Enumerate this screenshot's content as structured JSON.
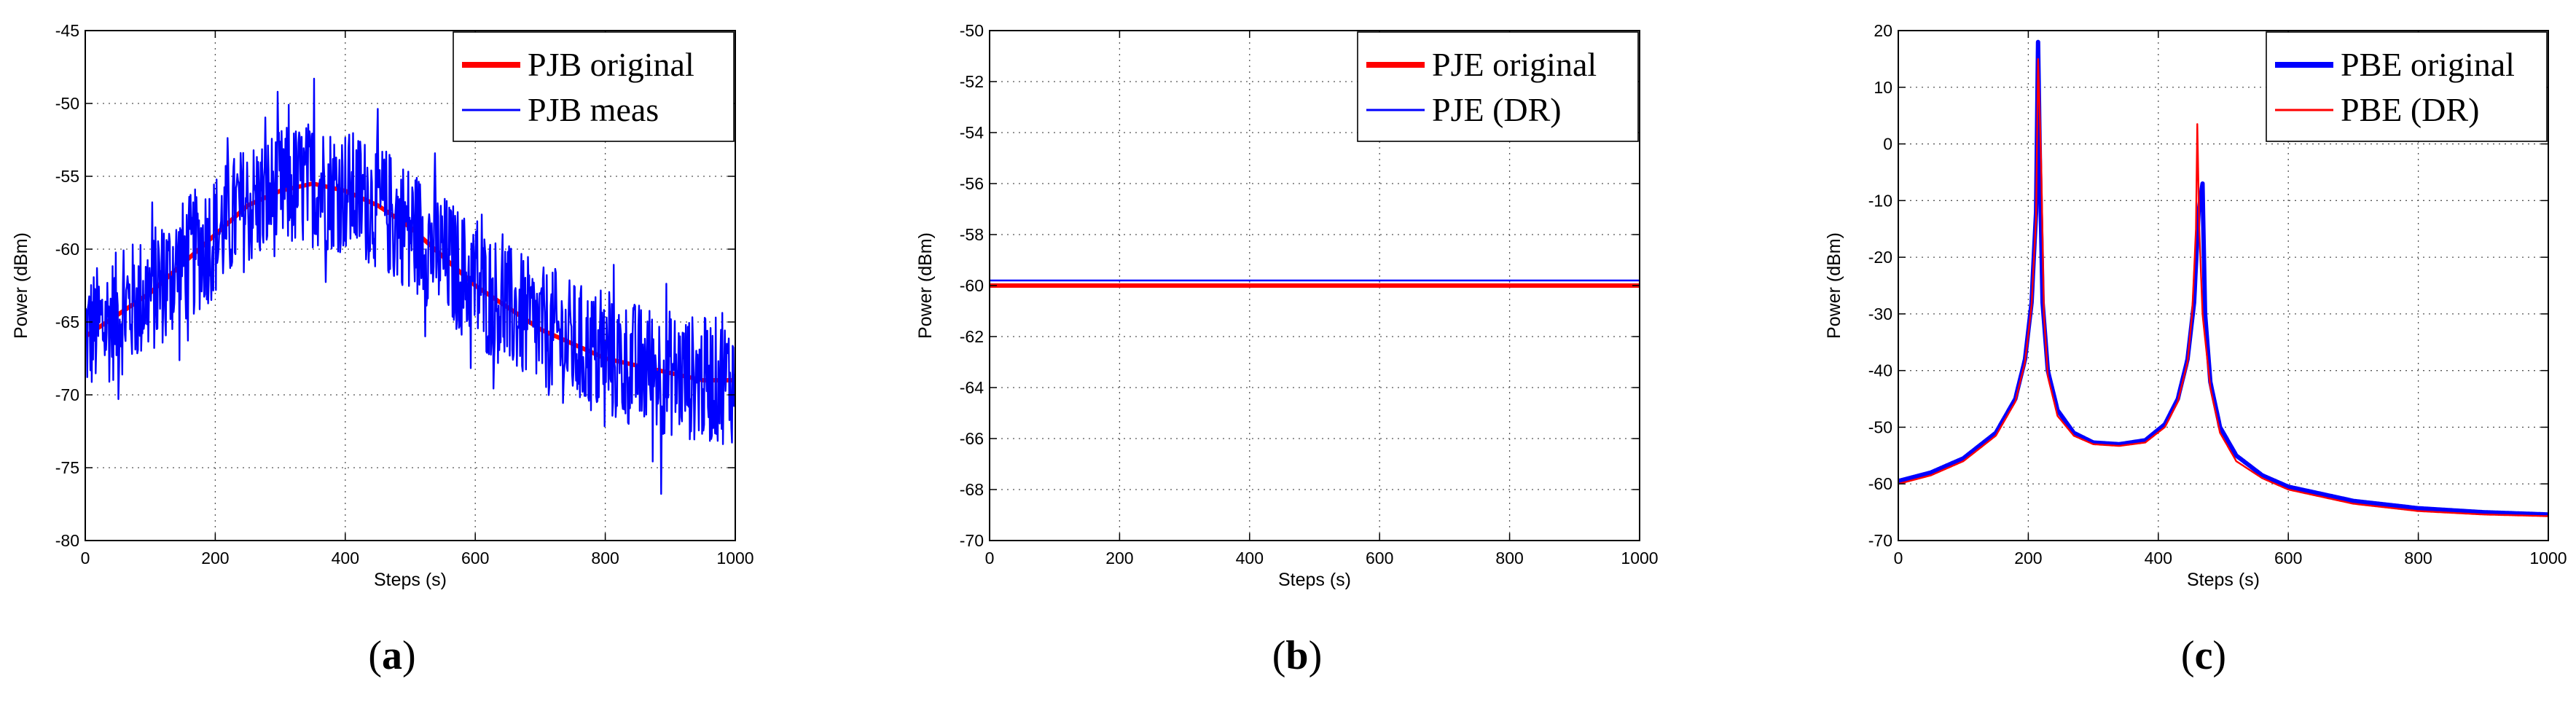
{
  "figure": {
    "subplots": [
      {
        "label_open": "(",
        "label_letter": "a",
        "label_close": ")"
      },
      {
        "label_open": "(",
        "label_letter": "b",
        "label_close": ")"
      },
      {
        "label_open": "(",
        "label_letter": "c",
        "label_close": ")"
      }
    ]
  },
  "chart_data": [
    {
      "type": "line",
      "title": "",
      "xlabel": "Steps (s)",
      "ylabel": "Power (dBm)",
      "xlim": [
        0,
        1000
      ],
      "ylim": [
        -80,
        -45
      ],
      "xticks": [
        0,
        200,
        400,
        600,
        800,
        1000
      ],
      "yticks": [
        -80,
        -75,
        -70,
        -65,
        -60,
        -55,
        -50,
        -45
      ],
      "grid": true,
      "legend_position": "top-right",
      "series": [
        {
          "name": "PJB original",
          "color": "#ff0000",
          "style": "thick",
          "note": "smooth trend hidden beneath noisy measurement",
          "x": [
            0,
            50,
            100,
            150,
            200,
            250,
            300,
            350,
            400,
            450,
            500,
            550,
            600,
            650,
            700,
            750,
            800,
            850,
            900,
            950,
            1000
          ],
          "y": [
            -66,
            -64.5,
            -63,
            -61,
            -59,
            -57,
            -56,
            -55.5,
            -56,
            -57,
            -58.5,
            -60.5,
            -62.5,
            -64,
            -65.5,
            -66.5,
            -67.5,
            -68,
            -68.5,
            -69,
            -69
          ]
        },
        {
          "name": "PJB meas",
          "color": "#0000ff",
          "style": "thin",
          "noise_amplitude_db": 8,
          "x": [
            0,
            50,
            100,
            150,
            200,
            250,
            300,
            350,
            400,
            450,
            500,
            550,
            600,
            650,
            700,
            750,
            800,
            850,
            900,
            950,
            1000
          ],
          "y": [
            -66,
            -64.5,
            -63,
            -61,
            -59,
            -57,
            -56,
            -55.5,
            -56,
            -57,
            -58.5,
            -60.5,
            -62.5,
            -64,
            -65.5,
            -66.5,
            -67.5,
            -68,
            -68.5,
            -69,
            -69
          ],
          "peak_max": [
            352,
            -48.3
          ],
          "trough_min": [
            886,
            -76.8
          ]
        }
      ]
    },
    {
      "type": "line",
      "title": "",
      "xlabel": "Steps (s)",
      "ylabel": "Power (dBm)",
      "xlim": [
        0,
        1000
      ],
      "ylim": [
        -70,
        -50
      ],
      "xticks": [
        0,
        200,
        400,
        600,
        800,
        1000
      ],
      "yticks": [
        -70,
        -68,
        -66,
        -64,
        -62,
        -60,
        -58,
        -56,
        -54,
        -52,
        -50
      ],
      "grid": true,
      "legend_position": "top-right",
      "series": [
        {
          "name": "PJE original",
          "color": "#ff0000",
          "style": "thick",
          "x": [
            0,
            1000
          ],
          "y": [
            -60,
            -60
          ]
        },
        {
          "name": "PJE (DR)",
          "color": "#0000ff",
          "style": "thin",
          "x": [
            0,
            1000
          ],
          "y": [
            -59.8,
            -59.8
          ]
        }
      ]
    },
    {
      "type": "line",
      "title": "",
      "xlabel": "Steps (s)",
      "ylabel": "Power (dBm)",
      "xlim": [
        0,
        1000
      ],
      "ylim": [
        -70,
        20
      ],
      "xticks": [
        0,
        200,
        400,
        600,
        800,
        1000
      ],
      "yticks": [
        -70,
        -60,
        -50,
        -40,
        -30,
        -20,
        -10,
        0,
        10,
        20
      ],
      "grid": true,
      "legend_position": "top-right",
      "series": [
        {
          "name": "PBE original",
          "color": "#0000ff",
          "style": "thick",
          "x": [
            0,
            50,
            100,
            150,
            180,
            195,
            205,
            212,
            215,
            218,
            222,
            230,
            245,
            270,
            300,
            340,
            380,
            410,
            430,
            445,
            455,
            462,
            468,
            472,
            480,
            495,
            520,
            560,
            600,
            700,
            800,
            900,
            1000
          ],
          "y": [
            -59.5,
            -58,
            -55.5,
            -51,
            -45,
            -38,
            -28,
            -12,
            18,
            -5,
            -28,
            -40,
            -47,
            -51,
            -52.7,
            -53,
            -52.3,
            -49.5,
            -45,
            -38,
            -28,
            -12,
            -7,
            -30,
            -42,
            -50,
            -55,
            -58.5,
            -60.5,
            -63,
            -64.3,
            -65,
            -65.4
          ]
        },
        {
          "name": "PBE (DR)",
          "color": "#ff0000",
          "style": "thin",
          "x": [
            0,
            50,
            100,
            150,
            180,
            195,
            205,
            212,
            215,
            220,
            224,
            230,
            245,
            270,
            300,
            340,
            380,
            410,
            430,
            445,
            452,
            458,
            460,
            463,
            468,
            480,
            495,
            520,
            560,
            600,
            700,
            800,
            900,
            1000
          ],
          "y": [
            -60,
            -58.5,
            -56,
            -51.5,
            -45.5,
            -38.5,
            -28.5,
            -13,
            15,
            -4,
            -30,
            -41,
            -48,
            -51.5,
            -53,
            -53.3,
            -52.7,
            -50,
            -45.5,
            -38.5,
            -30,
            -15,
            3.5,
            -15,
            -30,
            -43,
            -51,
            -56,
            -59,
            -61,
            -63.5,
            -64.8,
            -65.4,
            -65.7
          ]
        }
      ]
    }
  ]
}
